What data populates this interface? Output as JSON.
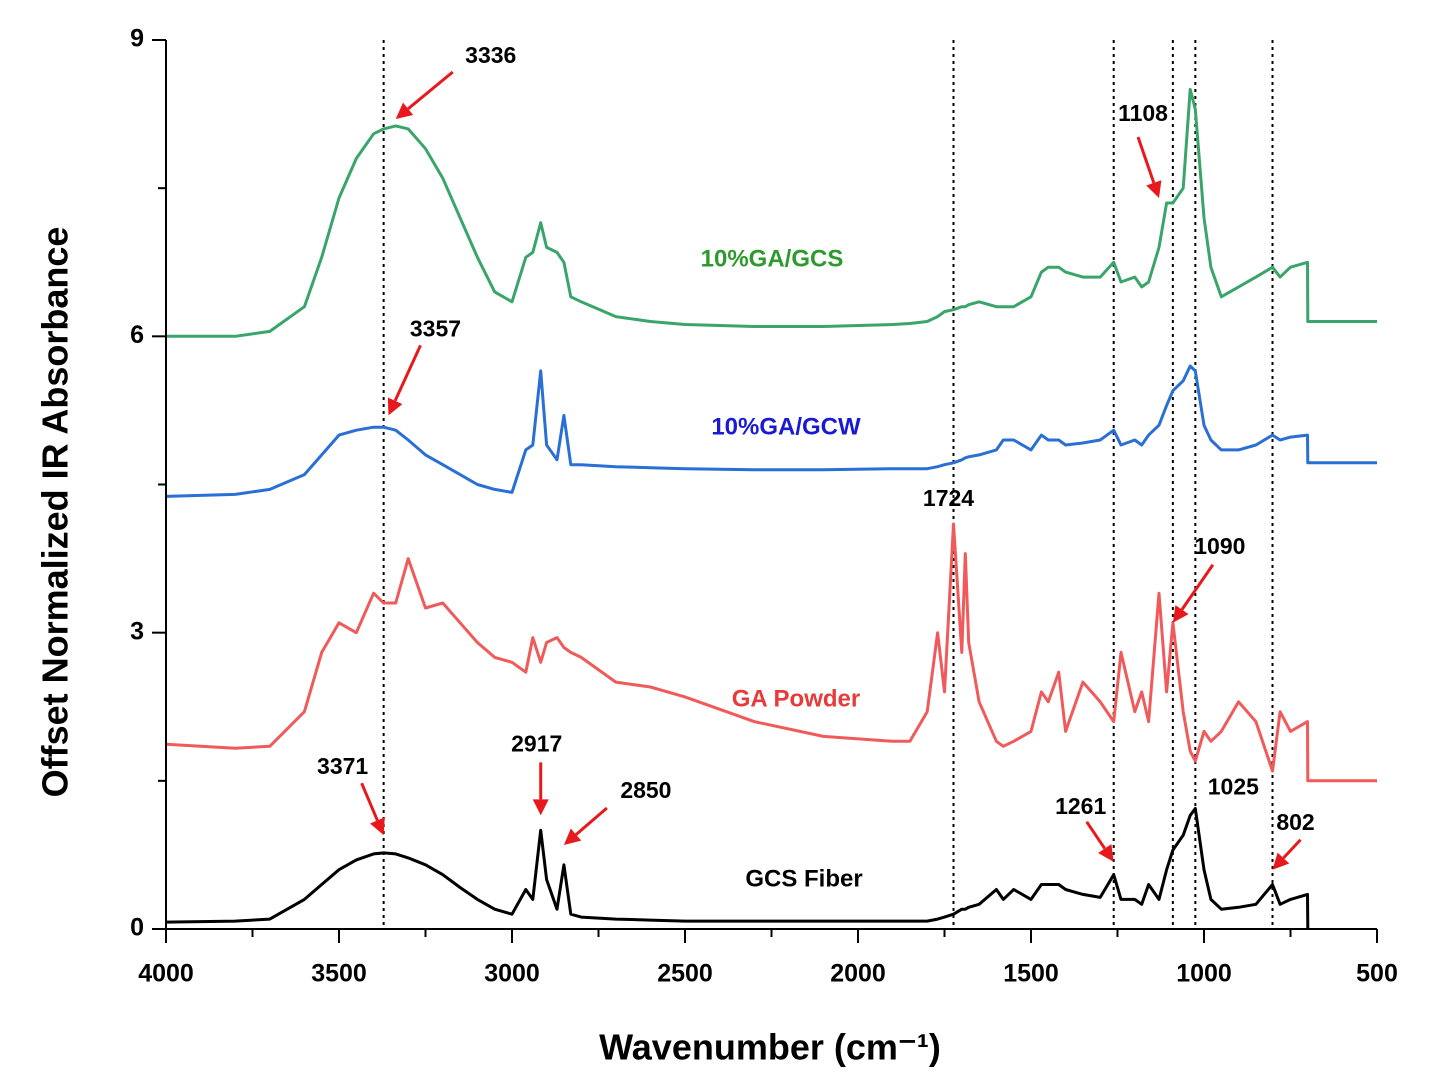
{
  "chart_data": {
    "type": "line",
    "xlabel": "Wavenumber (cm⁻¹)",
    "ylabel": "Offset Normalized IR Absorbance",
    "xlim": [
      4000,
      500
    ],
    "ylim": [
      0,
      9
    ],
    "xticks": [
      4000,
      3500,
      3000,
      2500,
      2000,
      1500,
      1000,
      500
    ],
    "yticks": [
      0,
      3,
      6,
      9
    ],
    "xminor": [
      3750,
      3250,
      2750,
      2250,
      1750,
      1250,
      750
    ],
    "yminor": [
      1.5,
      4.5,
      7.5
    ],
    "x": [
      4000,
      3800,
      3700,
      3600,
      3550,
      3500,
      3450,
      3400,
      3371,
      3336,
      3300,
      3250,
      3200,
      3150,
      3100,
      3050,
      3000,
      2960,
      2940,
      2917,
      2900,
      2870,
      2850,
      2830,
      2800,
      2700,
      2600,
      2500,
      2300,
      2100,
      1900,
      1850,
      1800,
      1770,
      1750,
      1724,
      1700,
      1690,
      1680,
      1650,
      1600,
      1580,
      1550,
      1500,
      1470,
      1450,
      1420,
      1400,
      1350,
      1300,
      1261,
      1240,
      1200,
      1180,
      1160,
      1130,
      1108,
      1090,
      1060,
      1040,
      1025,
      1000,
      980,
      950,
      900,
      850,
      802,
      780,
      750,
      701,
      700,
      500
    ],
    "series": [
      {
        "name": "GCS Fiber",
        "color": "#000000",
        "label_color": "#000000",
        "values": [
          0.07,
          0.08,
          0.1,
          0.3,
          0.45,
          0.6,
          0.7,
          0.76,
          0.77,
          0.76,
          0.72,
          0.65,
          0.55,
          0.42,
          0.3,
          0.2,
          0.15,
          0.4,
          0.3,
          1.0,
          0.5,
          0.2,
          0.65,
          0.15,
          0.12,
          0.1,
          0.09,
          0.08,
          0.08,
          0.08,
          0.08,
          0.08,
          0.08,
          0.1,
          0.12,
          0.15,
          0.2,
          0.2,
          0.22,
          0.25,
          0.4,
          0.3,
          0.4,
          0.3,
          0.45,
          0.45,
          0.45,
          0.4,
          0.35,
          0.32,
          0.55,
          0.3,
          0.3,
          0.25,
          0.45,
          0.3,
          0.6,
          0.8,
          0.95,
          1.15,
          1.22,
          0.6,
          0.3,
          0.2,
          0.22,
          0.25,
          0.45,
          0.25,
          0.3,
          0.35,
          0,
          null
        ]
      },
      {
        "name": "GA Powder",
        "color": "#f05a5a",
        "label_color": "#e83a3a",
        "values": [
          1.87,
          1.83,
          1.85,
          2.2,
          2.8,
          3.1,
          3.0,
          3.4,
          3.3,
          3.3,
          3.75,
          3.25,
          3.3,
          3.1,
          2.9,
          2.75,
          2.7,
          2.6,
          2.95,
          2.7,
          2.9,
          2.95,
          2.85,
          2.8,
          2.75,
          2.5,
          2.45,
          2.35,
          2.1,
          1.95,
          1.9,
          1.9,
          2.2,
          3.0,
          2.4,
          4.1,
          2.8,
          3.8,
          2.9,
          2.3,
          1.9,
          1.85,
          1.9,
          2.0,
          2.4,
          2.3,
          2.6,
          2.0,
          2.5,
          2.3,
          2.1,
          2.8,
          2.2,
          2.4,
          2.1,
          3.4,
          2.4,
          3.1,
          2.2,
          1.8,
          1.7,
          2.0,
          1.9,
          2.0,
          2.3,
          2.1,
          1.6,
          2.2,
          2.0,
          2.1,
          1.5,
          1.5
        ]
      },
      {
        "name": "10%GA/GCW",
        "color": "#2a6fd6",
        "label_color": "#1a1ad6",
        "values": [
          4.38,
          4.4,
          4.45,
          4.6,
          4.8,
          5.0,
          5.05,
          5.08,
          5.08,
          5.05,
          4.95,
          4.8,
          4.7,
          4.6,
          4.5,
          4.45,
          4.42,
          4.85,
          4.9,
          5.65,
          4.9,
          4.75,
          5.2,
          4.7,
          4.7,
          4.68,
          4.67,
          4.66,
          4.65,
          4.65,
          4.66,
          4.66,
          4.66,
          4.68,
          4.7,
          4.72,
          4.75,
          4.77,
          4.78,
          4.8,
          4.85,
          4.95,
          4.95,
          4.85,
          5.0,
          4.95,
          4.95,
          4.9,
          4.92,
          4.95,
          5.05,
          4.9,
          4.95,
          4.9,
          5.0,
          5.1,
          5.3,
          5.45,
          5.55,
          5.7,
          5.65,
          5.1,
          4.95,
          4.85,
          4.85,
          4.9,
          5.0,
          4.95,
          4.98,
          5.0,
          4.72,
          4.72
        ]
      },
      {
        "name": "10%GA/GCS",
        "color": "#3aa56b",
        "label_color": "#2e9a2e",
        "values": [
          6.0,
          6.0,
          6.05,
          6.3,
          6.8,
          7.4,
          7.8,
          8.05,
          8.1,
          8.13,
          8.1,
          7.9,
          7.6,
          7.2,
          6.8,
          6.45,
          6.35,
          6.8,
          6.85,
          7.15,
          6.9,
          6.85,
          6.75,
          6.4,
          6.35,
          6.2,
          6.15,
          6.12,
          6.1,
          6.1,
          6.12,
          6.13,
          6.15,
          6.2,
          6.25,
          6.27,
          6.3,
          6.3,
          6.32,
          6.35,
          6.3,
          6.3,
          6.3,
          6.4,
          6.65,
          6.7,
          6.7,
          6.65,
          6.6,
          6.6,
          6.75,
          6.55,
          6.6,
          6.5,
          6.55,
          6.9,
          7.35,
          7.35,
          7.5,
          8.5,
          8.3,
          7.2,
          6.7,
          6.4,
          6.5,
          6.6,
          6.7,
          6.6,
          6.7,
          6.75,
          6.15,
          6.15
        ]
      }
    ],
    "reference_lines": [
      3371,
      1724,
      1261,
      1090,
      1025,
      802
    ],
    "annotations": [
      {
        "text": "3336",
        "x": 3336,
        "y": 8.2
      },
      {
        "text": "3357",
        "x": 3357,
        "y": 5.2
      },
      {
        "text": "1724",
        "x": 1724,
        "y": 4.1
      },
      {
        "text": "1108",
        "x": 1130,
        "y": 7.4
      },
      {
        "text": "1090",
        "x": 1090,
        "y": 3.1
      },
      {
        "text": "3371",
        "x": 3371,
        "y": 0.95
      },
      {
        "text": "2917",
        "x": 2917,
        "y": 1.15
      },
      {
        "text": "2850",
        "x": 2850,
        "y": 0.85
      },
      {
        "text": "1261",
        "x": 1261,
        "y": 0.68
      },
      {
        "text": "1025",
        "x": 1025,
        "y": 1.25
      },
      {
        "text": "802",
        "x": 802,
        "y": 0.6
      }
    ]
  }
}
